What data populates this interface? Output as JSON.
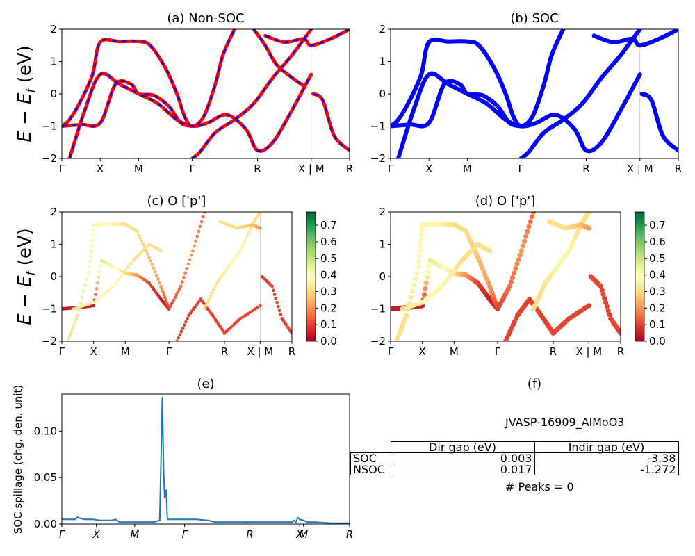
{
  "panels": {
    "a": {
      "title": "(a) Non-SOC"
    },
    "b": {
      "title": "(b) SOC"
    },
    "c": {
      "title": "(c)  O ['p']"
    },
    "d": {
      "title": "(d) O ['p']"
    },
    "e": {
      "title": "(e)"
    },
    "f": {
      "title": "(f)"
    }
  },
  "band_ylabel": "E − E",
  "band_ylabel_sub": "f",
  "band_ylabel_unit": " (eV)",
  "kpath_labels": [
    "Γ",
    "X",
    "M",
    "Γ",
    "R",
    "X | M",
    "R"
  ],
  "kpath_labels_spillage": [
    "Γ",
    "X",
    "M",
    "Γ",
    "R",
    "X",
    "M",
    "R"
  ],
  "colorbar": {
    "ticks": [
      "0.0",
      "0.1",
      "0.2",
      "0.3",
      "0.4",
      "0.5",
      "0.6",
      "0.7"
    ],
    "colors": [
      "#a50026",
      "#d73027",
      "#f46d43",
      "#fdae61",
      "#fee08b",
      "#ffffbf",
      "#d9ef8b",
      "#a6d96a",
      "#66bd63",
      "#1a9850",
      "#006837"
    ]
  },
  "spillage": {
    "ylabel": "SOC spillage (chg. den. unit)",
    "yticks": [
      "0.00",
      "0.05",
      "0.10"
    ]
  },
  "info": {
    "title": "JVASP-16909_AlMoO3",
    "columns": [
      "Dir gap (eV)",
      "Indir gap (eV)"
    ],
    "rows": [
      {
        "label": "SOC",
        "dir": "0.003",
        "indir": "-3.38"
      },
      {
        "label": "NSOC",
        "dir": "0.017",
        "indir": "-1.272"
      }
    ],
    "peaks": "# Peaks = 0"
  },
  "chart_data": [
    {
      "type": "line",
      "id": "a",
      "title": "(a) Non-SOC",
      "ylabel": "E − E_f (eV)",
      "ylim": [
        -2,
        2
      ],
      "yticks": [
        -2,
        -1,
        0,
        1,
        2
      ],
      "x_ticks": [
        0,
        1.0,
        2.0,
        3.4,
        5.1,
        6.5,
        7.5
      ],
      "x_tick_labels": [
        "Γ",
        "X",
        "M",
        "Γ",
        "R",
        "X | M",
        "R"
      ],
      "xlim": [
        0,
        7.5
      ],
      "styles": [
        "red-solid",
        "blue-dashed"
      ],
      "series": [
        {
          "x": [
            0,
            0.2,
            0.5,
            0.8,
            1.0,
            1.5,
            2.0,
            2.3,
            2.7,
            3.0,
            3.2,
            3.4,
            3.7,
            4.0,
            4.2,
            4.5
          ],
          "y": [
            -1.0,
            -0.8,
            -0.2,
            0.6,
            1.6,
            1.62,
            1.62,
            1.5,
            0.8,
            0,
            -0.7,
            -1.0,
            -0.7,
            0.3,
            1.2,
            2.0
          ]
        },
        {
          "x": [
            0,
            0.5,
            1.0,
            1.4,
            1.8,
            2.0,
            2.4,
            2.8,
            3.1,
            3.4
          ],
          "y": [
            -1.0,
            -0.95,
            -0.9,
            0.3,
            0.3,
            0.0,
            -0.05,
            -0.4,
            -0.9,
            -1.0
          ]
        },
        {
          "x": [
            0.2,
            0.6,
            1.0,
            1.5,
            2.0,
            2.5,
            3.0,
            3.4,
            3.8,
            4.3,
            4.8,
            5.1,
            5.5,
            6.0,
            6.5
          ],
          "y": [
            -2.0,
            -0.5,
            0.6,
            0.3,
            0.0,
            -0.3,
            -0.8,
            -1.0,
            -0.9,
            -0.65,
            -1.1,
            -1.75,
            -1.5,
            -0.5,
            0.6
          ]
        },
        {
          "x": [
            3.4,
            3.6,
            4.0,
            4.5,
            5.0,
            5.5,
            6.0,
            6.5
          ],
          "y": [
            -2.0,
            -1.8,
            -1.2,
            -0.8,
            -0.3,
            0.5,
            1.2,
            2.0
          ]
        },
        {
          "x": [
            5.0,
            5.3,
            5.6,
            6.0,
            6.3
          ],
          "y": [
            2.0,
            1.5,
            0.9,
            0.5,
            0.25
          ]
        },
        {
          "x": [
            5.3,
            5.8,
            6.3,
            6.5,
            7.0,
            7.5
          ],
          "y": [
            1.8,
            1.6,
            1.7,
            1.5,
            1.7,
            2.0
          ]
        },
        {
          "x": [
            6.55,
            6.8,
            7.1,
            7.5
          ],
          "y": [
            0.0,
            -0.2,
            -1.3,
            -1.75
          ]
        }
      ]
    },
    {
      "type": "line",
      "id": "b",
      "title": "(b) SOC",
      "ylim": [
        -2,
        2
      ],
      "yticks": [
        -2,
        -1,
        0,
        1,
        2
      ],
      "x_ticks": [
        0,
        1.0,
        2.0,
        3.4,
        5.1,
        6.5,
        7.5
      ],
      "x_tick_labels": [
        "Γ",
        "X",
        "M",
        "Γ",
        "R",
        "X | M",
        "R"
      ],
      "xlim": [
        0,
        7.5
      ],
      "series": [
        {
          "x": [
            0,
            0.2,
            0.5,
            0.8,
            1.0,
            1.5,
            2.0,
            2.3,
            2.7,
            3.0,
            3.2,
            3.4,
            3.7,
            4.0,
            4.2,
            4.5
          ],
          "y": [
            -1.0,
            -0.8,
            -0.2,
            0.6,
            1.6,
            1.62,
            1.62,
            1.5,
            0.8,
            0,
            -0.7,
            -1.0,
            -0.7,
            0.3,
            1.2,
            2.0
          ]
        },
        {
          "x": [
            0,
            0.5,
            1.0,
            1.4,
            1.8,
            2.0,
            2.4,
            2.8,
            3.1,
            3.4
          ],
          "y": [
            -1.0,
            -0.95,
            -0.9,
            0.3,
            0.3,
            0.0,
            -0.05,
            -0.4,
            -0.9,
            -1.0
          ]
        },
        {
          "x": [
            0.2,
            0.6,
            1.0,
            1.5,
            2.0,
            2.5,
            3.0,
            3.4,
            3.8,
            4.3,
            4.8,
            5.1,
            5.5,
            6.0,
            6.5
          ],
          "y": [
            -2.0,
            -0.5,
            0.6,
            0.3,
            0.0,
            -0.3,
            -0.8,
            -1.0,
            -0.9,
            -0.65,
            -1.1,
            -1.75,
            -1.5,
            -0.5,
            0.6
          ]
        },
        {
          "x": [
            3.4,
            3.6,
            4.0,
            4.5,
            5.0,
            5.5,
            6.0,
            6.5
          ],
          "y": [
            -2.0,
            -1.8,
            -1.2,
            -0.8,
            -0.3,
            0.5,
            1.2,
            2.0
          ]
        },
        {
          "x": [
            5.3,
            5.8,
            6.3,
            6.5,
            7.0,
            7.5
          ],
          "y": [
            1.8,
            1.6,
            1.7,
            1.5,
            1.7,
            2.0
          ]
        },
        {
          "x": [
            6.55,
            6.8,
            7.1,
            7.5
          ],
          "y": [
            0.0,
            -0.2,
            -1.3,
            -1.75
          ]
        }
      ]
    },
    {
      "type": "scatter",
      "id": "c",
      "title": "(c)  O ['p']",
      "ylim": [
        -2,
        2
      ],
      "yticks": [
        -2,
        -1,
        0,
        1,
        2
      ],
      "x_ticks": [
        0,
        0.8,
        1.6,
        2.7,
        4.1,
        5.0,
        5.8
      ],
      "x_tick_labels": [
        "Γ",
        "X",
        "M",
        "Γ",
        "R",
        "X | M",
        "R"
      ],
      "xlim": [
        0,
        5.8
      ],
      "colorbar_range": [
        0.0,
        0.75
      ],
      "series": [
        {
          "x": [
            0,
            0.2,
            0.5,
            0.8,
            1.0,
            1.3,
            1.6,
            1.9,
            2.2,
            2.5,
            2.7
          ],
          "y": [
            -1.0,
            -0.98,
            -0.95,
            -0.9,
            0.5,
            0.3,
            0.1,
            0.05,
            -0.2,
            -0.7,
            -1.0
          ],
          "weight": [
            0.05,
            0.05,
            0.05,
            0.05,
            0.45,
            0.4,
            0.3,
            0.2,
            0.1,
            0.05,
            0.05
          ]
        },
        {
          "x": [
            0.15,
            0.4,
            0.7,
            0.8,
            1.2,
            1.6,
            1.9,
            2.2,
            2.5,
            2.7,
            3.0,
            3.3,
            3.6
          ],
          "y": [
            -2.0,
            -1.2,
            0.3,
            1.6,
            1.62,
            1.62,
            1.4,
            0.6,
            -0.3,
            -1.0,
            -0.3,
            0.8,
            2.0
          ],
          "weight": [
            0.3,
            0.3,
            0.35,
            0.35,
            0.35,
            0.3,
            0.3,
            0.25,
            0.2,
            0.1,
            0.15,
            0.2,
            0.15
          ]
        },
        {
          "x": [
            0.3,
            0.8,
            1.3,
            1.8,
            2.2,
            2.5
          ],
          "y": [
            -1.0,
            -0.8,
            -0.3,
            0.5,
            1.0,
            0.8
          ],
          "weight": [
            0.3,
            0.35,
            0.35,
            0.3,
            0.3,
            0.3
          ]
        },
        {
          "x": [
            2.9,
            3.2,
            3.5,
            3.8,
            4.1,
            4.5,
            5.0
          ],
          "y": [
            -2.0,
            -1.2,
            -0.7,
            -1.2,
            -1.75,
            -1.3,
            -0.9
          ],
          "weight": [
            0.1,
            0.1,
            0.1,
            0.1,
            0.1,
            0.1,
            0.1
          ]
        },
        {
          "x": [
            3.6,
            3.9,
            4.2,
            4.5,
            4.8,
            5.0
          ],
          "y": [
            -1.0,
            -0.2,
            0.3,
            0.8,
            1.6,
            2.0
          ],
          "weight": [
            0.3,
            0.3,
            0.35,
            0.35,
            0.3,
            0.3
          ]
        },
        {
          "x": [
            4.0,
            4.4,
            4.8,
            5.0
          ],
          "y": [
            1.7,
            1.5,
            1.6,
            1.5
          ],
          "weight": [
            0.3,
            0.3,
            0.25,
            0.2
          ]
        },
        {
          "x": [
            5.05,
            5.3,
            5.55,
            5.8
          ],
          "y": [
            0.0,
            -0.3,
            -1.3,
            -1.75
          ],
          "weight": [
            0.1,
            0.1,
            0.1,
            0.1
          ]
        }
      ]
    },
    {
      "type": "scatter",
      "id": "d",
      "title": "(d) O ['p']",
      "ylim": [
        -2,
        2
      ],
      "yticks": [
        -2,
        -1,
        0,
        1,
        2
      ],
      "x_ticks": [
        0,
        0.8,
        1.6,
        2.7,
        4.1,
        5.0,
        5.8
      ],
      "x_tick_labels": [
        "Γ",
        "X",
        "M",
        "Γ",
        "R",
        "X | M",
        "R"
      ],
      "xlim": [
        0,
        5.8
      ],
      "colorbar_range": [
        0.0,
        0.75
      ],
      "series": [
        {
          "x": [
            0,
            0.2,
            0.5,
            0.8,
            1.0,
            1.3,
            1.6,
            1.9,
            2.2,
            2.5,
            2.7
          ],
          "y": [
            -1.0,
            -0.98,
            -0.95,
            -0.9,
            0.5,
            0.3,
            0.1,
            0.05,
            -0.2,
            -0.7,
            -1.0
          ],
          "weight": [
            0.05,
            0.05,
            0.05,
            0.05,
            0.45,
            0.4,
            0.3,
            0.2,
            0.1,
            0.05,
            0.05
          ]
        },
        {
          "x": [
            0.15,
            0.4,
            0.7,
            0.8,
            1.2,
            1.6,
            1.9,
            2.2,
            2.5,
            2.7,
            3.0,
            3.3,
            3.6
          ],
          "y": [
            -2.0,
            -1.2,
            0.3,
            1.6,
            1.62,
            1.62,
            1.4,
            0.6,
            -0.3,
            -1.0,
            -0.3,
            0.8,
            2.0
          ],
          "weight": [
            0.3,
            0.3,
            0.35,
            0.35,
            0.35,
            0.3,
            0.3,
            0.25,
            0.2,
            0.1,
            0.15,
            0.2,
            0.15
          ]
        },
        {
          "x": [
            0.3,
            0.8,
            1.3,
            1.8,
            2.2,
            2.5
          ],
          "y": [
            -1.0,
            -0.8,
            -0.3,
            0.5,
            1.0,
            0.8
          ],
          "weight": [
            0.3,
            0.35,
            0.35,
            0.3,
            0.3,
            0.3
          ]
        },
        {
          "x": [
            2.9,
            3.2,
            3.5,
            3.8,
            4.1,
            4.5,
            5.0
          ],
          "y": [
            -2.0,
            -1.2,
            -0.7,
            -1.2,
            -1.75,
            -1.3,
            -0.9
          ],
          "weight": [
            0.1,
            0.1,
            0.1,
            0.1,
            0.1,
            0.1,
            0.1
          ]
        },
        {
          "x": [
            3.6,
            3.9,
            4.2,
            4.5,
            4.8,
            5.0
          ],
          "y": [
            -1.0,
            -0.2,
            0.3,
            0.8,
            1.6,
            2.0
          ],
          "weight": [
            0.3,
            0.3,
            0.35,
            0.35,
            0.3,
            0.3
          ]
        },
        {
          "x": [
            4.0,
            4.4,
            4.8,
            5.0
          ],
          "y": [
            1.7,
            1.5,
            1.6,
            1.5
          ],
          "weight": [
            0.3,
            0.3,
            0.25,
            0.2
          ]
        },
        {
          "x": [
            5.05,
            5.3,
            5.55,
            5.8
          ],
          "y": [
            0.0,
            -0.3,
            -1.3,
            -1.75
          ],
          "weight": [
            0.1,
            0.1,
            0.1,
            0.1
          ]
        }
      ]
    },
    {
      "type": "line",
      "id": "e",
      "title": "(e)",
      "ylabel": "SOC spillage (chg. den. unit)",
      "ylim": [
        0,
        0.14
      ],
      "yticks": [
        0.0,
        0.05,
        0.1
      ],
      "x_ticks": [
        0,
        0.9,
        1.9,
        3.2,
        4.9,
        6.2,
        6.3,
        7.5
      ],
      "x_tick_labels": [
        "Γ",
        "X",
        "M",
        "Γ",
        "R",
        "X",
        "M",
        "R"
      ],
      "xlim": [
        0,
        7.5
      ],
      "series": [
        {
          "name": "",
          "x": [
            0,
            0.3,
            0.35,
            0.4,
            0.5,
            0.6,
            0.8,
            1.0,
            1.2,
            1.3,
            1.4,
            1.5,
            1.6,
            1.8,
            2.0,
            2.2,
            2.4,
            2.55,
            2.62,
            2.65,
            2.68,
            2.72,
            2.75,
            2.8,
            2.85,
            3.0,
            3.5,
            3.8,
            4.0,
            4.5,
            5.0,
            5.5,
            6.0,
            6.05,
            6.1,
            6.15,
            6.2,
            6.3,
            6.4,
            6.6,
            7.0,
            7.5
          ],
          "y": [
            0.005,
            0.005,
            0.005,
            0.0075,
            0.006,
            0.005,
            0.005,
            0.004,
            0.004,
            0.004,
            0.005,
            0.002,
            0.002,
            0.002,
            0.002,
            0.002,
            0.002,
            0.004,
            0.137,
            0.06,
            0.028,
            0.037,
            0.005,
            0.005,
            0.005,
            0.005,
            0.005,
            0.004,
            0.002,
            0.002,
            0.002,
            0.002,
            0.002,
            0.004,
            0.002,
            0.007,
            0.005,
            0.004,
            0.002,
            0.002,
            0.001,
            0.001
          ]
        }
      ]
    }
  ]
}
